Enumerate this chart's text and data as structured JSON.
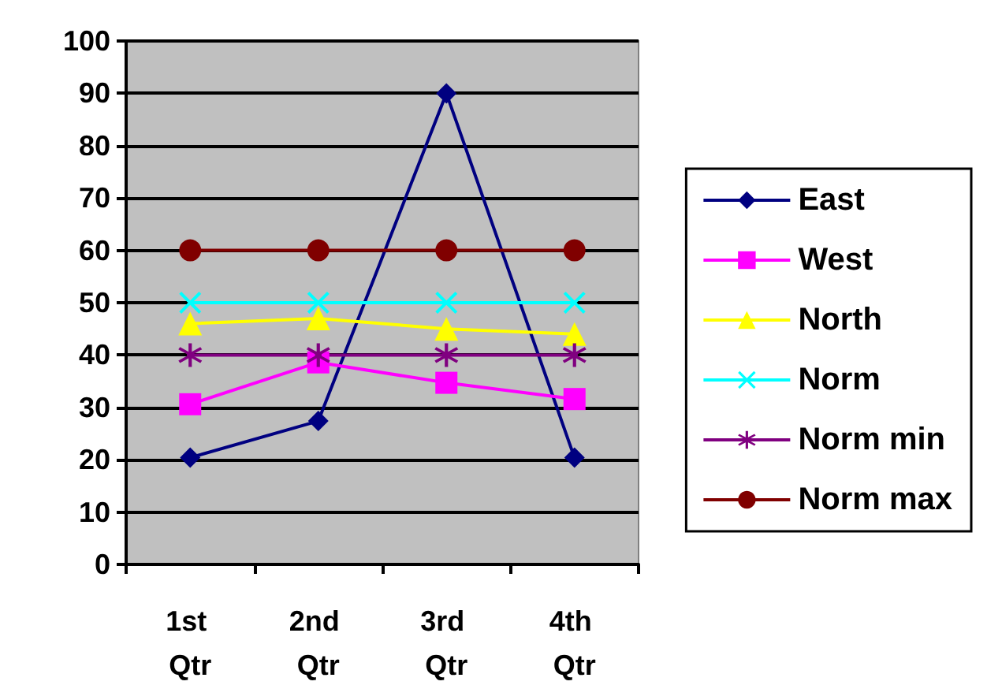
{
  "chart_data": {
    "type": "line",
    "categories": [
      "1st Qtr",
      "2nd Qtr",
      "3rd Qtr",
      "4th Qtr"
    ],
    "ylim": [
      0,
      100
    ],
    "yticks": [
      0,
      10,
      20,
      30,
      40,
      50,
      60,
      70,
      80,
      90,
      100
    ],
    "grid": "y",
    "legend": "right",
    "series": [
      {
        "name": "East",
        "color": "#000080",
        "marker": "diamond",
        "values": [
          20.4,
          27.4,
          90,
          20.4
        ]
      },
      {
        "name": "West",
        "color": "#ff00ff",
        "marker": "square",
        "values": [
          30.6,
          38.6,
          34.7,
          31.6
        ]
      },
      {
        "name": "North",
        "color": "#ffff00",
        "marker": "triangle",
        "values": [
          46,
          47,
          45,
          44
        ]
      },
      {
        "name": "Norm",
        "color": "#00ffff",
        "marker": "cross",
        "values": [
          50,
          50,
          50,
          50
        ]
      },
      {
        "name": "Norm min",
        "color": "#800080",
        "marker": "star",
        "values": [
          40,
          40,
          40,
          40
        ]
      },
      {
        "name": "Norm max",
        "color": "#800000",
        "marker": "circle",
        "values": [
          60,
          60,
          60,
          60
        ]
      }
    ]
  }
}
